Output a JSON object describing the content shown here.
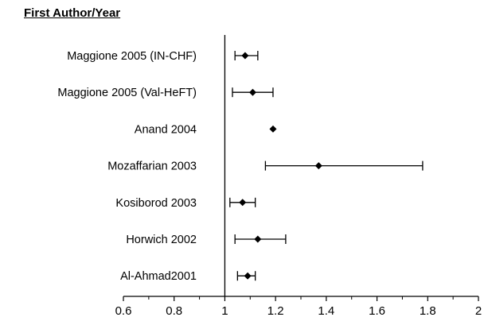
{
  "column_header": "First Author/Year",
  "chart_data": {
    "type": "forest",
    "categories": [
      "Maggione 2005 (IN-CHF)",
      "Maggione 2005 (Val-HeFT)",
      "Anand 2004",
      "Mozaffarian 2003",
      "Kosiborod 2003",
      "Horwich 2002",
      "Al-Ahmad2001"
    ],
    "estimates": [
      1.08,
      1.11,
      1.19,
      1.37,
      1.07,
      1.13,
      1.09
    ],
    "ci_lower": [
      1.04,
      1.03,
      1.19,
      1.16,
      1.02,
      1.04,
      1.05
    ],
    "ci_upper": [
      1.13,
      1.19,
      1.19,
      1.78,
      1.12,
      1.24,
      1.12
    ],
    "reference_line": 1,
    "xlim": [
      0.6,
      2
    ],
    "x_ticks": [
      "0.6",
      "0.8",
      "1",
      "1.2",
      "1.4",
      "1.6",
      "1.8",
      "2"
    ],
    "marker": "diamond",
    "grid": false
  }
}
